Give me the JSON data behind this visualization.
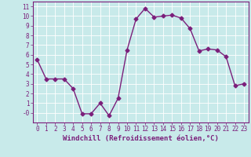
{
  "x": [
    0,
    1,
    2,
    3,
    4,
    5,
    6,
    7,
    8,
    9,
    10,
    11,
    12,
    13,
    14,
    15,
    16,
    17,
    18,
    19,
    20,
    21,
    22,
    23
  ],
  "y": [
    5.5,
    3.5,
    3.5,
    3.5,
    2.5,
    -0.1,
    -0.1,
    1.0,
    -0.3,
    1.5,
    6.5,
    9.7,
    10.8,
    9.9,
    10.0,
    10.1,
    9.8,
    8.7,
    6.4,
    6.6,
    6.5,
    5.8,
    2.8,
    3.0
  ],
  "line_color": "#7B1F7B",
  "marker": "D",
  "markersize": 2.5,
  "linewidth": 1.0,
  "bg_color": "#c8eaea",
  "grid_color": "#ffffff",
  "xlabel": "Windchill (Refroidissement éolien,°C)",
  "xlabel_fontsize": 6.5,
  "tick_fontsize": 5.5,
  "ylim": [
    -1,
    11.5
  ],
  "xlim": [
    -0.5,
    23.5
  ],
  "yticks": [
    0,
    1,
    2,
    3,
    4,
    5,
    6,
    7,
    8,
    9,
    10,
    11
  ],
  "xticks": [
    0,
    1,
    2,
    3,
    4,
    5,
    6,
    7,
    8,
    9,
    10,
    11,
    12,
    13,
    14,
    15,
    16,
    17,
    18,
    19,
    20,
    21,
    22,
    23
  ]
}
